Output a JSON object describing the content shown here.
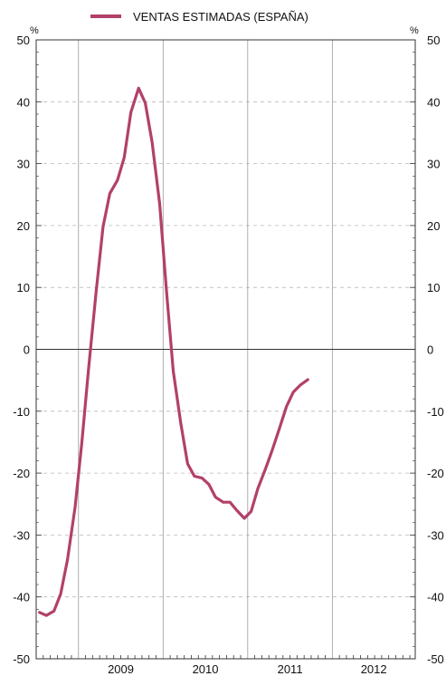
{
  "chart_data": {
    "type": "line",
    "title": "",
    "xlabel": "",
    "ylabel": "%",
    "ylabel_right": "%",
    "ylim": [
      -50,
      50
    ],
    "y_ticks": [
      50,
      40,
      30,
      20,
      10,
      0,
      -10,
      -20,
      -30,
      -40,
      -50
    ],
    "y_tick_labels": [
      "50",
      "40",
      "30",
      "20",
      "10",
      "0",
      "-10",
      "-20",
      "-30",
      "-40",
      "-50"
    ],
    "x_ticks": [
      "2009",
      "2010",
      "2011",
      "2012"
    ],
    "xlim": [
      2008.5,
      2012.98
    ],
    "grid": "horizontal dashed, vertical solid at year boundaries",
    "legend_position": "top-center",
    "zero_line": true,
    "series": [
      {
        "name": "VENTAS ESTIMADAS (ESPAÑA)",
        "color": "#b2406a",
        "x": [
          2008.54,
          2008.62,
          2008.71,
          2008.79,
          2008.87,
          2008.96,
          2009.04,
          2009.12,
          2009.21,
          2009.29,
          2009.37,
          2009.46,
          2009.54,
          2009.62,
          2009.71,
          2009.79,
          2009.87,
          2009.96,
          2010.04,
          2010.12,
          2010.21,
          2010.29,
          2010.37,
          2010.46,
          2010.54,
          2010.62,
          2010.71,
          2010.79,
          2010.87,
          2010.96,
          2011.04,
          2011.12,
          2011.21,
          2011.29,
          2011.37,
          2011.46,
          2011.54,
          2011.62,
          2011.71
        ],
        "values": [
          -42.5,
          -43.0,
          -42.3,
          -39.5,
          -34.0,
          -25.5,
          -15.0,
          -3.0,
          9.5,
          19.8,
          25.2,
          27.3,
          31.0,
          38.3,
          42.2,
          39.8,
          33.5,
          23.5,
          9.5,
          -3.5,
          -12.0,
          -18.5,
          -20.5,
          -20.8,
          -21.8,
          -23.9,
          -24.7,
          -24.7,
          -26.0,
          -27.3,
          -26.2,
          -22.5,
          -19.3,
          -16.3,
          -13.0,
          -9.2,
          -6.9,
          -5.8,
          -4.9
        ]
      }
    ]
  }
}
